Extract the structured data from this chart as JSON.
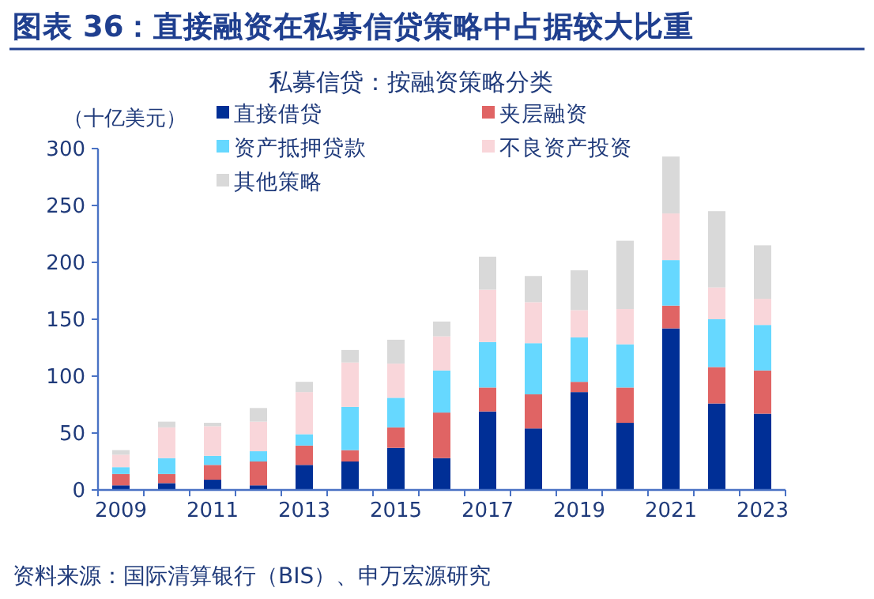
{
  "chart_data": {
    "type": "bar",
    "stacked": true,
    "title": "图表 36：直接融资在私募信贷策略中占据较大比重",
    "subtitle": "私募信贷：按融资策略分类",
    "ylabel": "（十亿美元）",
    "annotations": [
      "资料来源：国际清算银行（BIS）、申万宏源研究"
    ],
    "categories": [
      "2009",
      null,
      "2011",
      null,
      "2013",
      null,
      "2015",
      null,
      "2017",
      null,
      "2019",
      null,
      "2021",
      null,
      "2023"
    ],
    "ylim": [
      0,
      300
    ],
    "yticks": [
      0,
      50,
      100,
      150,
      200,
      250,
      300
    ],
    "grid": false,
    "legend": "top left",
    "series": [
      {
        "name": "直接借贷",
        "color": "#002f96",
        "values": [
          4,
          6,
          9,
          4,
          22,
          25,
          37,
          28,
          69,
          54,
          86,
          59,
          142,
          76,
          67
        ]
      },
      {
        "name": "夹层融资",
        "color": "#e06464",
        "values": [
          10,
          8,
          13,
          21,
          17,
          10,
          18,
          40,
          21,
          30,
          9,
          31,
          20,
          32,
          38
        ]
      },
      {
        "name": "资产抵押贷款",
        "color": "#66d8ff",
        "values": [
          6,
          14,
          8,
          9,
          10,
          38,
          26,
          37,
          40,
          45,
          39,
          38,
          40,
          42,
          40
        ]
      },
      {
        "name": "不良资产投资",
        "color": "#f9d6da",
        "values": [
          11,
          27,
          26,
          26,
          37,
          39,
          30,
          30,
          46,
          36,
          24,
          31,
          41,
          28,
          23
        ]
      },
      {
        "name": "其他策略",
        "color": "#d9d9d9",
        "values": [
          4,
          5,
          3,
          12,
          9,
          11,
          21,
          13,
          29,
          23,
          35,
          60,
          50,
          67,
          47
        ]
      }
    ]
  }
}
